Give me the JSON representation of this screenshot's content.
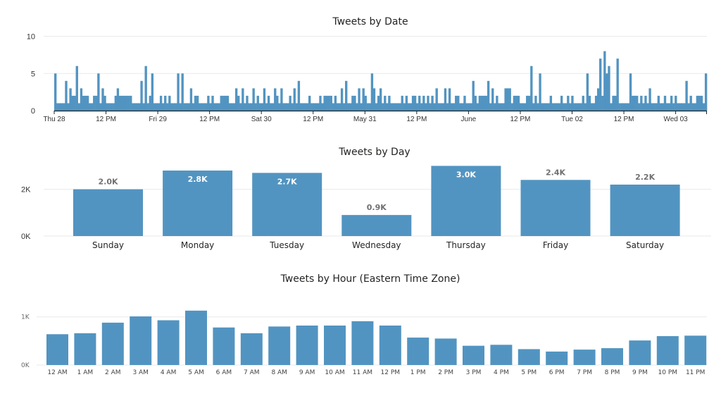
{
  "chart_data": [
    {
      "type": "bar",
      "title": "Tweets by Date",
      "xlabel": "",
      "ylabel": "",
      "ylim": [
        0,
        10
      ],
      "yticks": [
        "0",
        "5",
        "10"
      ],
      "xticks": [
        "Thu 28",
        "12 PM",
        "Fri 29",
        "12 PM",
        "Sat 30",
        "12 PM",
        "May 31",
        "12 PM",
        "June",
        "12 PM",
        "Tue 02",
        "12 PM",
        "Wed 03"
      ],
      "bin": "30 minutes",
      "bin_count": 303,
      "default_value": 1,
      "grid": true,
      "color": "#5294c1",
      "spikes": [
        [
          0,
          5
        ],
        [
          5,
          4
        ],
        [
          7,
          3
        ],
        [
          8,
          2
        ],
        [
          9,
          2
        ],
        [
          10,
          6
        ],
        [
          12,
          3
        ],
        [
          13,
          2
        ],
        [
          14,
          2
        ],
        [
          15,
          2
        ],
        [
          18,
          2
        ],
        [
          19,
          2
        ],
        [
          20,
          5
        ],
        [
          22,
          3
        ],
        [
          23,
          2
        ],
        [
          28,
          2
        ],
        [
          29,
          3
        ],
        [
          30,
          2
        ],
        [
          31,
          2
        ],
        [
          32,
          2
        ],
        [
          33,
          2
        ],
        [
          34,
          2
        ],
        [
          35,
          2
        ],
        [
          40,
          4
        ],
        [
          42,
          6
        ],
        [
          44,
          2
        ],
        [
          45,
          5
        ],
        [
          49,
          2
        ],
        [
          51,
          2
        ],
        [
          53,
          2
        ],
        [
          57,
          5
        ],
        [
          59,
          5
        ],
        [
          63,
          3
        ],
        [
          65,
          2
        ],
        [
          66,
          2
        ],
        [
          71,
          2
        ],
        [
          73,
          2
        ],
        [
          77,
          2
        ],
        [
          78,
          2
        ],
        [
          79,
          2
        ],
        [
          80,
          2
        ],
        [
          84,
          3
        ],
        [
          85,
          2
        ],
        [
          87,
          3
        ],
        [
          89,
          2
        ],
        [
          92,
          3
        ],
        [
          94,
          2
        ],
        [
          97,
          3
        ],
        [
          99,
          2
        ],
        [
          102,
          3
        ],
        [
          103,
          2
        ],
        [
          105,
          3
        ],
        [
          109,
          2
        ],
        [
          111,
          3
        ],
        [
          113,
          4
        ],
        [
          118,
          2
        ],
        [
          123,
          2
        ],
        [
          125,
          2
        ],
        [
          126,
          2
        ],
        [
          127,
          2
        ],
        [
          128,
          2
        ],
        [
          130,
          2
        ],
        [
          133,
          3
        ],
        [
          135,
          4
        ],
        [
          138,
          2
        ],
        [
          139,
          2
        ],
        [
          141,
          3
        ],
        [
          143,
          3
        ],
        [
          144,
          2
        ],
        [
          147,
          5
        ],
        [
          148,
          3
        ],
        [
          150,
          2
        ],
        [
          151,
          3
        ],
        [
          153,
          2
        ],
        [
          155,
          2
        ],
        [
          161,
          2
        ],
        [
          163,
          2
        ],
        [
          166,
          2
        ],
        [
          167,
          2
        ],
        [
          169,
          2
        ],
        [
          171,
          2
        ],
        [
          173,
          2
        ],
        [
          175,
          2
        ],
        [
          177,
          3
        ],
        [
          181,
          3
        ],
        [
          183,
          3
        ],
        [
          186,
          2
        ],
        [
          187,
          2
        ],
        [
          190,
          2
        ],
        [
          194,
          4
        ],
        [
          195,
          2
        ],
        [
          197,
          2
        ],
        [
          198,
          2
        ],
        [
          199,
          2
        ],
        [
          200,
          2
        ],
        [
          201,
          4
        ],
        [
          203,
          3
        ],
        [
          205,
          2
        ],
        [
          209,
          3
        ],
        [
          210,
          3
        ],
        [
          211,
          3
        ],
        [
          213,
          2
        ],
        [
          214,
          2
        ],
        [
          215,
          2
        ],
        [
          219,
          2
        ],
        [
          220,
          2
        ],
        [
          221,
          6
        ],
        [
          223,
          2
        ],
        [
          225,
          5
        ],
        [
          230,
          2
        ],
        [
          235,
          2
        ],
        [
          238,
          2
        ],
        [
          240,
          2
        ],
        [
          245,
          2
        ],
        [
          247,
          5
        ],
        [
          248,
          2
        ],
        [
          251,
          2
        ],
        [
          252,
          3
        ],
        [
          253,
          7
        ],
        [
          254,
          2
        ],
        [
          255,
          8
        ],
        [
          256,
          5
        ],
        [
          257,
          6
        ],
        [
          259,
          2
        ],
        [
          260,
          2
        ],
        [
          261,
          7
        ],
        [
          267,
          5
        ],
        [
          268,
          2
        ],
        [
          269,
          2
        ],
        [
          270,
          2
        ],
        [
          272,
          2
        ],
        [
          274,
          2
        ],
        [
          276,
          3
        ],
        [
          280,
          2
        ],
        [
          283,
          2
        ],
        [
          286,
          2
        ],
        [
          288,
          2
        ],
        [
          293,
          4
        ],
        [
          295,
          2
        ],
        [
          298,
          2
        ],
        [
          299,
          2
        ],
        [
          300,
          2
        ],
        [
          302,
          5
        ]
      ]
    },
    {
      "type": "bar",
      "title": "Tweets by Day",
      "xlabel": "",
      "ylabel": "",
      "ylim": [
        0,
        3000
      ],
      "yticks": [
        "0K",
        "2K"
      ],
      "grid": true,
      "color": "#5294c1",
      "categories": [
        "Sunday",
        "Monday",
        "Tuesday",
        "Wednesday",
        "Thursday",
        "Friday",
        "Saturday"
      ],
      "values": [
        2000,
        2800,
        2700,
        900,
        3000,
        2400,
        2200
      ],
      "data_labels": [
        "2.0K",
        "2.8K",
        "2.7K",
        "0.9K",
        "3.0K",
        "2.4K",
        "2.2K"
      ]
    },
    {
      "type": "bar",
      "title": "Tweets by Hour (Eastern Time Zone)",
      "xlabel": "",
      "ylabel": "",
      "ylim": [
        0,
        1150
      ],
      "yticks": [
        "0K",
        "1K"
      ],
      "grid": true,
      "color": "#5294c1",
      "categories": [
        "12 AM",
        "1 AM",
        "2 AM",
        "3 AM",
        "4 AM",
        "5 AM",
        "6 AM",
        "7 AM",
        "8 AM",
        "9 AM",
        "10 AM",
        "11 AM",
        "12 PM",
        "1 PM",
        "2 PM",
        "3 PM",
        "4 PM",
        "5 PM",
        "6 PM",
        "7 PM",
        "8 PM",
        "9 PM",
        "10 PM",
        "11 PM"
      ],
      "values": [
        640,
        660,
        880,
        1010,
        930,
        1130,
        780,
        660,
        800,
        820,
        820,
        910,
        820,
        570,
        550,
        400,
        420,
        330,
        280,
        320,
        350,
        510,
        600,
        610
      ]
    }
  ]
}
